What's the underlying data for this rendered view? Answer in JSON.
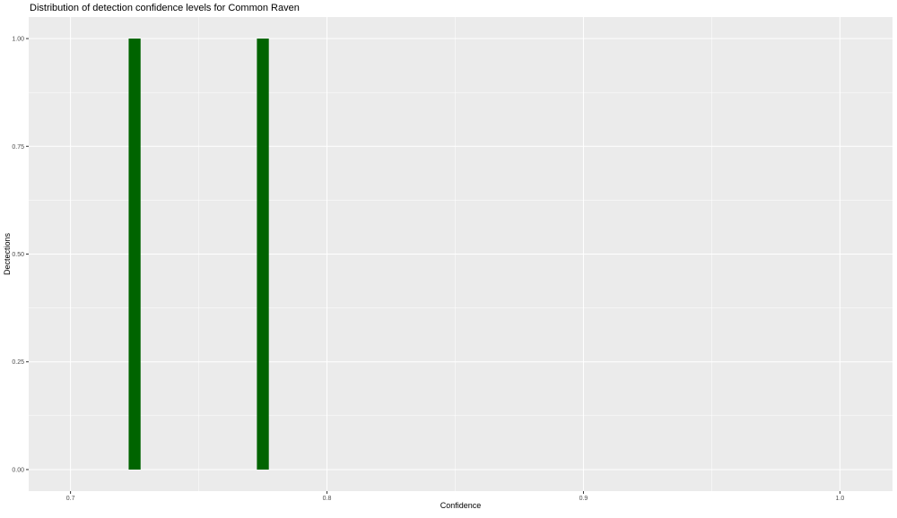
{
  "chart_data": {
    "type": "bar",
    "title": "Distribution of detection confidence levels for Common Raven",
    "xlabel": "Confidence",
    "ylabel": "Dectections",
    "xlim": [
      0.6837,
      1.0205
    ],
    "ylim": [
      -0.05,
      1.05
    ],
    "binwidth": 0.005,
    "x": [
      0.725,
      0.775
    ],
    "values": [
      1,
      1
    ],
    "x_ticks": [
      0.7,
      0.8,
      0.9,
      1.0
    ],
    "x_tick_labels": [
      "0.7",
      "0.8",
      "0.9",
      "1.0"
    ],
    "y_ticks": [
      0,
      0.25,
      0.5,
      0.75,
      1
    ],
    "y_tick_labels": [
      "0.00",
      "0.25",
      "0.50",
      "0.75",
      "1.00"
    ],
    "grid": true,
    "bar_color": "#006400",
    "panel_background": "#EBEBEB"
  }
}
